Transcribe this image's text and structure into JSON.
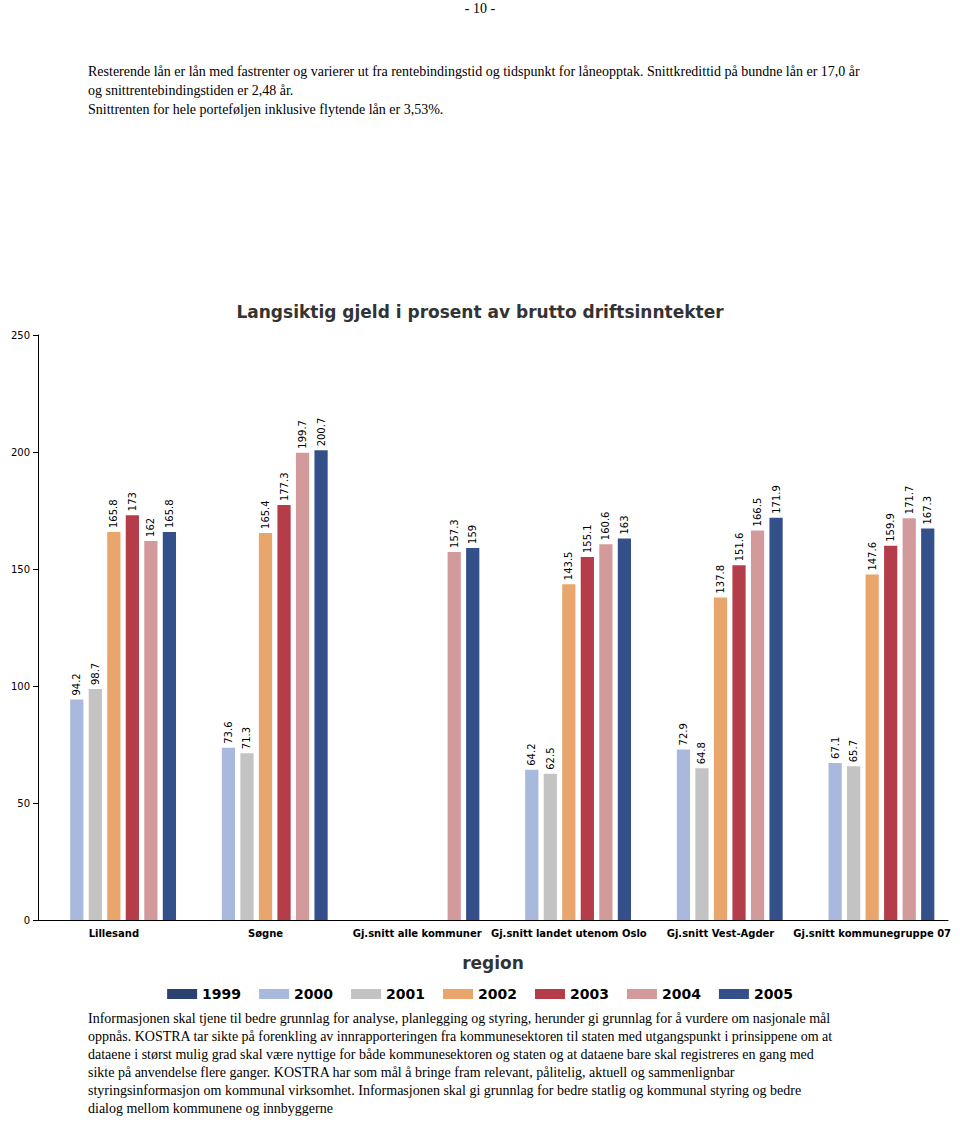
{
  "document": {
    "page_number": "- 10 -",
    "paragraphs_top": [
      "Resterende lån er lån med fastrenter og varierer ut fra rentebindingstid og tidspunkt for låneopptak. Snittkredittid på bundne lån er 17,0 år og snittrentebindingstiden er 2,48 år.",
      "Snittrenten for hele porteføljen inklusive flytende lån er  3,53%."
    ],
    "paragraphs_bottom": [
      "Informasjonen skal tjene til bedre grunnlag for analyse, planlegging og styring, herunder gi grunnlag for å vurdere om nasjonale mål oppnås. KOSTRA tar sikte på forenkling av innrapporteringen fra kommunesektoren til staten med utgangspunkt i prinsippene om at dataene i størst mulig grad skal være nyttige for både kommunesektoren og staten og at dataene bare skal registreres en gang med sikte på anvendelse flere ganger. KOSTRA har som mål å bringe fram relevant, pålitelig, aktuell og sammenlignbar styringsinformasjon om kommunal virksomhet. Informasjonen skal gi grunnlag for bedre statlig og kommunal styring og bedre dialog mellom kommunene og innbyggerne"
    ]
  },
  "chart_data": {
    "type": "bar",
    "title": "Langsiktig gjeld i prosent av brutto driftsinntekter",
    "x_label": "region",
    "categories": [
      "Lillesand",
      "Søgne",
      "Gj.snitt alle kommuner",
      "Gj.snitt landet utenom Oslo",
      "Gj.snitt Vest-Agder",
      "Gj.snitt kommunegruppe 07"
    ],
    "series": [
      {
        "name": "1999",
        "color": "#2b4270",
        "values": [
          null,
          null,
          null,
          null,
          null,
          null
        ]
      },
      {
        "name": "2000",
        "color": "#a9b9dd",
        "values": [
          94.2,
          73.6,
          null,
          64.2,
          72.9,
          67.1
        ]
      },
      {
        "name": "2001",
        "color": "#c3c3c3",
        "values": [
          98.7,
          71.3,
          null,
          62.5,
          64.8,
          65.7
        ]
      },
      {
        "name": "2002",
        "color": "#e9a66c",
        "values": [
          165.8,
          165.4,
          null,
          143.5,
          137.8,
          147.6
        ]
      },
      {
        "name": "2003",
        "color": "#b53d4a",
        "values": [
          173.0,
          177.3,
          null,
          155.1,
          151.6,
          159.9
        ]
      },
      {
        "name": "2004",
        "color": "#d39a9b",
        "values": [
          162.0,
          199.7,
          157.3,
          160.6,
          166.5,
          171.7
        ]
      },
      {
        "name": "2005",
        "color": "#34508a",
        "values": [
          165.8,
          200.7,
          159.0,
          163.0,
          171.9,
          167.3
        ]
      }
    ],
    "ylim": [
      0,
      250
    ],
    "yticks": [
      0,
      50,
      100,
      150,
      200,
      250
    ],
    "grid": false,
    "legend": "bottom",
    "data_labels": true
  }
}
